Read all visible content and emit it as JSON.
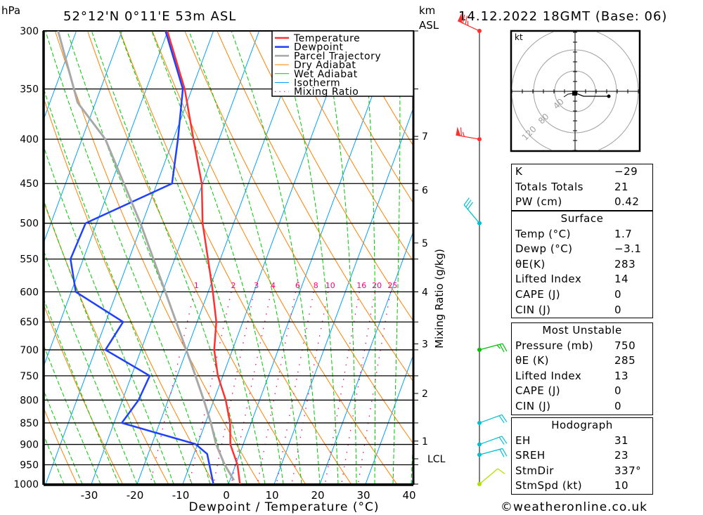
{
  "header": {
    "pressure_unit": "hPa",
    "location": "52°12'N  0°11'E  53m  ASL",
    "km_unit": "km",
    "asl_label": "ASL",
    "datetime": "14.12.2022  18GMT  (Base: 06)"
  },
  "colors": {
    "temperature": "#ff3030",
    "dewpoint": "#2040ff",
    "parcel": "#a8a8a8",
    "dry_adiabat": "#ff8000",
    "wet_adiabat": "#00c800",
    "isotherm": "#00a0ff",
    "mixing_ratio": "#ff0080"
  },
  "chart_data": {
    "type": "line",
    "title": "52°12'N 0°11'E 53m ASL",
    "xlabel": "Dewpoint / Temperature (°C)",
    "ylabel": "hPa",
    "secondary_ylabel": "Mixing Ratio (g/kg)",
    "xlim": [
      -40,
      40
    ],
    "ylim": [
      1000,
      300
    ],
    "x_ticks": [
      -30,
      -20,
      -10,
      0,
      10,
      20,
      30,
      40
    ],
    "y_ticks": [
      300,
      350,
      400,
      450,
      500,
      550,
      600,
      650,
      700,
      750,
      800,
      850,
      900,
      950,
      1000
    ],
    "km_ticks": [
      {
        "label": "7",
        "p": 397
      },
      {
        "label": "6",
        "p": 458
      },
      {
        "label": "5",
        "p": 527
      },
      {
        "label": "4",
        "p": 600
      },
      {
        "label": "3",
        "p": 689
      },
      {
        "label": "2",
        "p": 786
      },
      {
        "label": "1",
        "p": 892
      },
      {
        "label": "LCL",
        "p": 935
      }
    ],
    "mixing_ratio_labels": [
      1,
      2,
      3,
      4,
      6,
      8,
      10,
      16,
      20,
      25
    ],
    "legend": [
      "Temperature",
      "Dewpoint",
      "Parcel Trajectory",
      "Dry Adiabat",
      "Wet Adiabat",
      "Isotherm",
      "Mixing Ratio"
    ],
    "legend_placement": "top-right",
    "series": [
      {
        "name": "Temperature",
        "p": [
          300,
          350,
          400,
          450,
          500,
          550,
          600,
          650,
          700,
          750,
          800,
          850,
          900,
          950,
          1000
        ],
        "t": [
          -50.1,
          -41.6,
          -35.6,
          -30.2,
          -26.8,
          -22.7,
          -19.0,
          -15.8,
          -14.0,
          -11.1,
          -7.4,
          -4.6,
          -2.8,
          0.4,
          2.5
        ]
      },
      {
        "name": "Dewpoint",
        "p": [
          300,
          350,
          400,
          450,
          500,
          550,
          600,
          650,
          700,
          750,
          800,
          850,
          899,
          923,
          1000
        ],
        "t": [
          -50.5,
          -42.0,
          -39.0,
          -36.7,
          -52.4,
          -52.8,
          -49.0,
          -36.2,
          -37.8,
          -26.0,
          -26.5,
          -28.3,
          -10.5,
          -7.1,
          -3.3
        ]
      },
      {
        "name": "Parcel Trajectory",
        "p": [
          300,
          363,
          400,
          500,
          600,
          730,
          800,
          850,
          900,
          950,
          990
        ],
        "t": [
          -74.0,
          -63.9,
          -54.9,
          -40.4,
          -29.4,
          -17.6,
          -12.2,
          -8.8,
          -5.9,
          -2.4,
          0.9
        ]
      }
    ],
    "winds": [
      {
        "p": 300,
        "dir": 295,
        "kt": 75,
        "color": "#ff3030"
      },
      {
        "p": 400,
        "dir": 280,
        "kt": 65,
        "color": "#ff3030"
      },
      {
        "p": 500,
        "dir": 320,
        "kt": 30,
        "color": "#00c0d0"
      },
      {
        "p": 700,
        "dir": 75,
        "kt": 25,
        "color": "#00c000"
      },
      {
        "p": 850,
        "dir": 70,
        "kt": 20,
        "color": "#00c0d0"
      },
      {
        "p": 900,
        "dir": 70,
        "kt": 20,
        "color": "#00c0d0"
      },
      {
        "p": 925,
        "dir": 75,
        "kt": 20,
        "color": "#00c0d0"
      },
      {
        "p": 1000,
        "dir": 50,
        "kt": 10,
        "color": "#b0e000"
      }
    ]
  },
  "hodograph": {
    "unit": "kt",
    "ring_labels": [
      "40",
      "80",
      "120"
    ]
  },
  "indices": {
    "k_label": "K",
    "k_value": "−29",
    "tt_label": "Totals Totals",
    "tt_value": "21",
    "pw_label": "PW (cm)",
    "pw_value": "0.42"
  },
  "surface": {
    "title": "Surface",
    "rows": [
      {
        "label": "Temp (°C)",
        "value": "1.7"
      },
      {
        "label": "Dewp (°C)",
        "value": "−3.1"
      },
      {
        "label": "θE(K)",
        "value": "283"
      },
      {
        "label": "Lifted Index",
        "value": "14"
      },
      {
        "label": "CAPE (J)",
        "value": "0"
      },
      {
        "label": "CIN (J)",
        "value": "0"
      }
    ]
  },
  "most_unstable": {
    "title": "Most Unstable",
    "rows": [
      {
        "label": "Pressure (mb)",
        "value": "750"
      },
      {
        "label": "θE (K)",
        "value": "285"
      },
      {
        "label": "Lifted Index",
        "value": "13"
      },
      {
        "label": "CAPE (J)",
        "value": "0"
      },
      {
        "label": "CIN (J)",
        "value": "0"
      }
    ]
  },
  "hodo_indices": {
    "title": "Hodograph",
    "rows": [
      {
        "label": "EH",
        "value": "31"
      },
      {
        "label": "SREH",
        "value": "23"
      },
      {
        "label": "StmDir",
        "value": "337°"
      },
      {
        "label": "StmSpd (kt)",
        "value": "10"
      }
    ]
  },
  "footer": {
    "credit": "©weatheronline.co.uk"
  }
}
